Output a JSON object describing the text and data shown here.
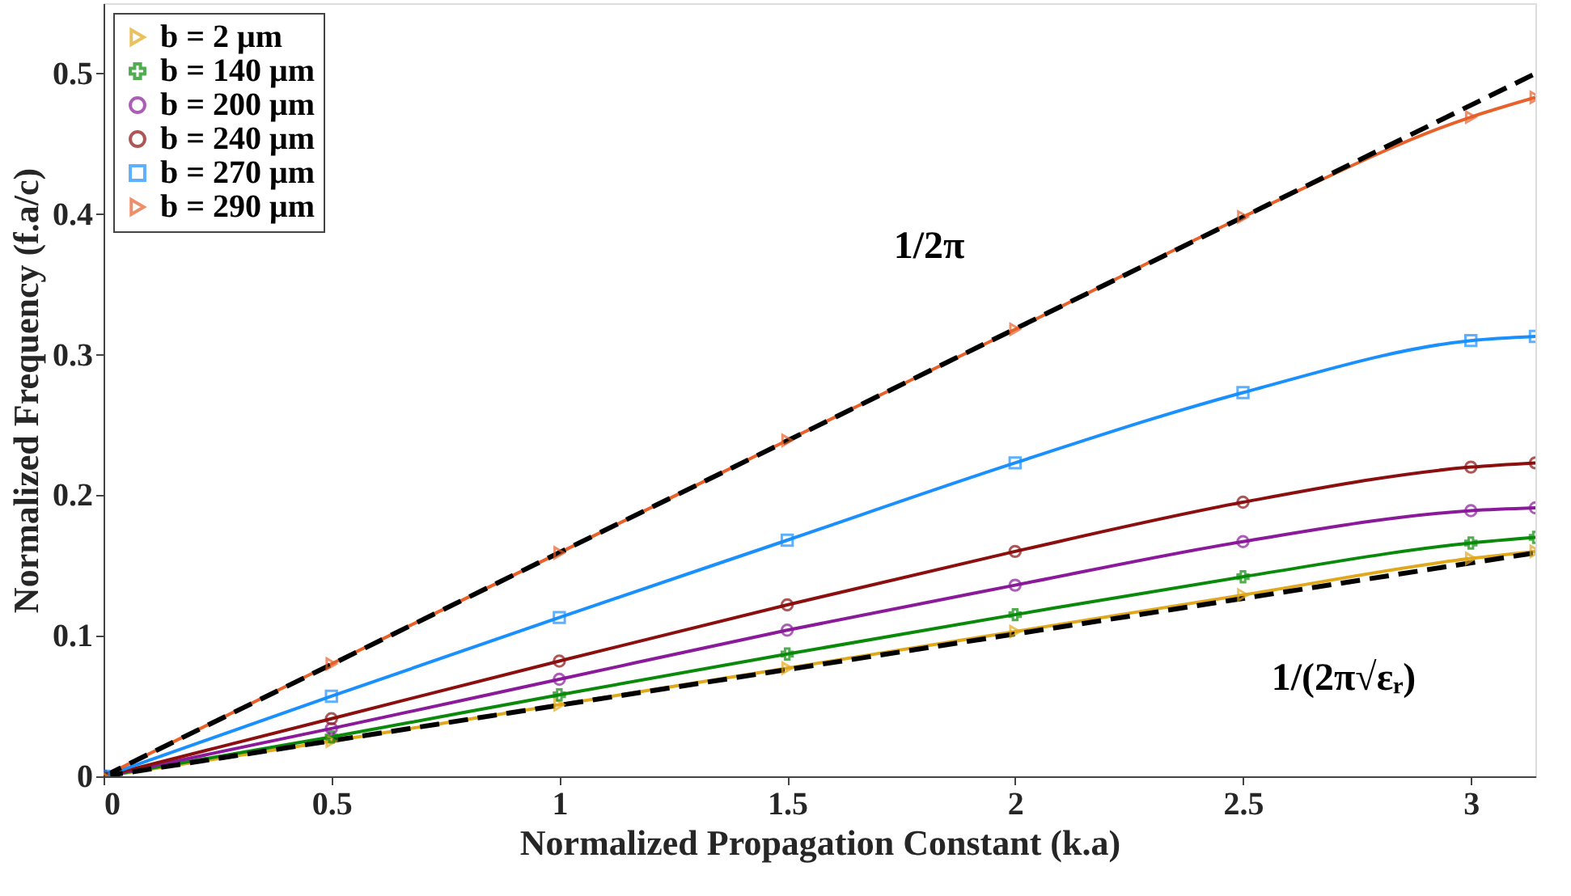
{
  "chart_data": {
    "type": "line",
    "xlabel": "Normalized Propagation Constant (k.a)",
    "ylabel": "Normalized Frequency (f.a/c)",
    "xlim": [
      0,
      3.1416
    ],
    "ylim": [
      0,
      0.55
    ],
    "xticks": [
      0,
      0.5,
      1,
      1.5,
      2,
      2.5,
      3
    ],
    "yticks": [
      0,
      0.1,
      0.2,
      0.3,
      0.4,
      0.5
    ],
    "grid": false,
    "legend": "top left",
    "line_style": "solid",
    "series": [
      {
        "name": "b = 2 μm",
        "color": "#e0a81c",
        "marker": "triangle",
        "x": [
          0,
          0.5,
          1,
          1.5,
          2,
          2.5,
          3,
          3.1416
        ],
        "values": [
          0,
          0.025,
          0.051,
          0.077,
          0.103,
          0.129,
          0.155,
          0.16
        ]
      },
      {
        "name": "b = 140 μm",
        "color": "#0a8a0a",
        "marker": "cross",
        "x": [
          0,
          0.5,
          1,
          1.5,
          2,
          2.5,
          3,
          3.1416
        ],
        "values": [
          0,
          0.028,
          0.058,
          0.087,
          0.115,
          0.142,
          0.166,
          0.17
        ]
      },
      {
        "name": "b = 200 μm",
        "color": "#8a1a9a",
        "marker": "circle",
        "x": [
          0,
          0.5,
          1,
          1.5,
          2,
          2.5,
          3,
          3.1416
        ],
        "values": [
          0,
          0.034,
          0.069,
          0.104,
          0.136,
          0.167,
          0.189,
          0.191
        ]
      },
      {
        "name": "b = 240 μm",
        "color": "#8b0f0f",
        "marker": "circle",
        "x": [
          0,
          0.5,
          1,
          1.5,
          2,
          2.5,
          3,
          3.1416
        ],
        "values": [
          0,
          0.041,
          0.082,
          0.122,
          0.16,
          0.195,
          0.22,
          0.223
        ]
      },
      {
        "name": "b = 270 μm",
        "color": "#1a90ff",
        "marker": "square",
        "x": [
          0,
          0.5,
          1,
          1.5,
          2,
          2.5,
          3,
          3.1416
        ],
        "values": [
          0,
          0.057,
          0.113,
          0.168,
          0.223,
          0.273,
          0.31,
          0.313
        ]
      },
      {
        "name": "b = 290 μm",
        "color": "#e8602a",
        "marker": "triangle",
        "x": [
          0,
          0.5,
          1,
          1.5,
          2,
          2.5,
          3,
          3.1416
        ],
        "values": [
          0,
          0.08,
          0.159,
          0.239,
          0.318,
          0.398,
          0.469,
          0.483
        ]
      },
      {
        "color": "#000000",
        "marker": "none",
        "line_style": "dashed",
        "x": [
          0,
          3.1416
        ],
        "values": [
          0,
          0.5
        ]
      },
      {
        "color": "#000000",
        "marker": "none",
        "line_style": "dashed",
        "x": [
          0,
          3.1416
        ],
        "values": [
          0,
          0.159
        ]
      }
    ],
    "annotations": [
      {
        "text": "1/2π",
        "x": 1.9,
        "y": 0.302
      },
      {
        "text": "1/(2π√εᵣ)",
        "x": 2.65,
        "y": 0.133
      }
    ]
  }
}
